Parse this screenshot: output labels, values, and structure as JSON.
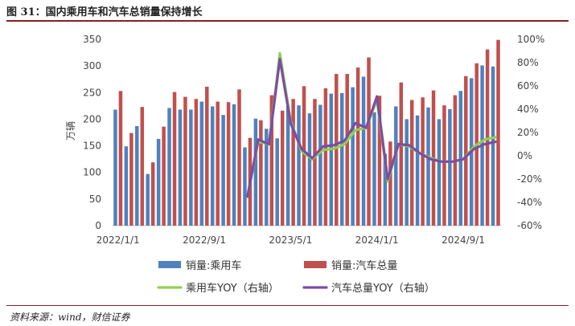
{
  "figure": {
    "title": "图 31：国内乘用车和汽车总销量保持增长",
    "source": "资料来源：wind，财信证券"
  },
  "chart_data": {
    "type": "bar",
    "ylabel": "万辆",
    "ylim": [
      0,
      350
    ],
    "y2lim": [
      -60,
      100
    ],
    "y_ticks": [
      "0",
      "50",
      "100",
      "150",
      "200",
      "250",
      "300",
      "350"
    ],
    "y2_ticks": [
      "-60%",
      "-40%",
      "-20%",
      "0%",
      "20%",
      "40%",
      "60%",
      "80%",
      "100%"
    ],
    "x_ticks": [
      "2022/1/1",
      "2022/9/1",
      "2023/5/1",
      "2024/1/1",
      "2024/9/1"
    ],
    "categories": [
      "2022-01",
      "2022-02",
      "2022-03",
      "2022-04",
      "2022-05",
      "2022-06",
      "2022-07",
      "2022-08",
      "2022-09",
      "2022-10",
      "2022-11",
      "2022-12",
      "2023-01",
      "2023-02",
      "2023-03",
      "2023-04",
      "2023-05",
      "2023-06",
      "2023-07",
      "2023-08",
      "2023-09",
      "2023-10",
      "2023-11",
      "2023-12",
      "2024-01",
      "2024-02",
      "2024-03",
      "2024-04",
      "2024-05",
      "2024-06",
      "2024-07",
      "2024-08",
      "2024-09",
      "2024-10",
      "2024-11",
      "2024-12"
    ],
    "series": [
      {
        "name": "销量:乘用车",
        "axis": "left",
        "kind": "bar",
        "color": "#4f81bd",
        "values": [
          218,
          149,
          187,
          97,
          163,
          221,
          218,
          218,
          233,
          224,
          208,
          228,
          147,
          201,
          182,
          164,
          225,
          226,
          211,
          227,
          248,
          249,
          260,
          280,
          213,
          135,
          224,
          200,
          207,
          222,
          200,
          219,
          253,
          277,
          301,
          299
        ]
      },
      {
        "name": "销量:汽车总量",
        "axis": "left",
        "kind": "bar",
        "color": "#c0504d",
        "values": [
          253,
          174,
          223,
          119,
          186,
          251,
          242,
          238,
          261,
          233,
          232,
          256,
          165,
          198,
          245,
          216,
          238,
          262,
          238,
          258,
          285,
          285,
          297,
          316,
          244,
          158,
          269,
          236,
          241,
          254,
          226,
          245,
          281,
          305,
          331,
          349
        ]
      },
      {
        "name": "乘用车YOY（右轴）",
        "axis": "right",
        "kind": "line",
        "color": "#92d050",
        "values": [
          null,
          null,
          null,
          null,
          null,
          null,
          null,
          null,
          null,
          null,
          null,
          null,
          -35,
          12,
          10,
          88,
          30,
          4,
          -3,
          5,
          6,
          10,
          22,
          24,
          48,
          -22,
          10,
          8,
          2,
          -2,
          -5,
          -5,
          -3,
          8,
          14,
          16
        ]
      },
      {
        "name": "汽车总量YOY（右轴）",
        "axis": "right",
        "kind": "line",
        "color": "#7a4ea3",
        "values": [
          null,
          null,
          null,
          null,
          null,
          null,
          null,
          null,
          null,
          null,
          null,
          null,
          -35,
          14,
          10,
          83,
          28,
          6,
          -2,
          8,
          9,
          13,
          28,
          24,
          51,
          -20,
          10,
          9,
          2,
          -3,
          -5,
          -5,
          -3,
          6,
          10,
          12
        ]
      }
    ],
    "legend_position": "bottom",
    "grid": false
  }
}
